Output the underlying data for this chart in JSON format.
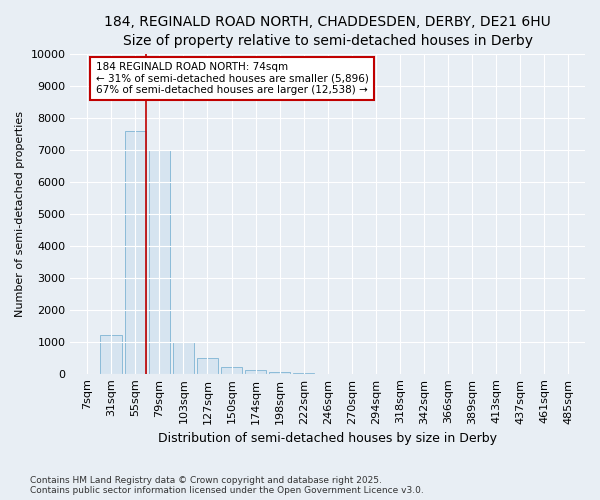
{
  "title1": "184, REGINALD ROAD NORTH, CHADDESDEN, DERBY, DE21 6HU",
  "title2": "Size of property relative to semi-detached houses in Derby",
  "xlabel": "Distribution of semi-detached houses by size in Derby",
  "ylabel": "Number of semi-detached properties",
  "categories": [
    "7sqm",
    "31sqm",
    "55sqm",
    "79sqm",
    "103sqm",
    "127sqm",
    "150sqm",
    "174sqm",
    "198sqm",
    "222sqm",
    "246sqm",
    "270sqm",
    "294sqm",
    "318sqm",
    "342sqm",
    "366sqm",
    "389sqm",
    "413sqm",
    "437sqm",
    "461sqm",
    "485sqm"
  ],
  "values": [
    5,
    1200,
    7600,
    7000,
    1000,
    500,
    200,
    100,
    50,
    10,
    3,
    2,
    1,
    1,
    0,
    0,
    0,
    0,
    0,
    0,
    0
  ],
  "bar_color": "#d6e4f0",
  "bar_edge_color": "#7eb4d4",
  "vline_x_index": 2.45,
  "vline_color": "#c00000",
  "annotation_text": "184 REGINALD ROAD NORTH: 74sqm\n← 31% of semi-detached houses are smaller (5,896)\n67% of semi-detached houses are larger (12,538) →",
  "annotation_box_facecolor": "#ffffff",
  "annotation_box_edgecolor": "#c00000",
  "ylim": [
    0,
    10000
  ],
  "yticks": [
    0,
    1000,
    2000,
    3000,
    4000,
    5000,
    6000,
    7000,
    8000,
    9000,
    10000
  ],
  "footnote1": "Contains HM Land Registry data © Crown copyright and database right 2025.",
  "footnote2": "Contains public sector information licensed under the Open Government Licence v3.0.",
  "bg_color": "#e8eef4",
  "plot_bg_color": "#e8eef4",
  "grid_color": "#ffffff",
  "title_fontsize": 10,
  "xlabel_fontsize": 9,
  "ylabel_fontsize": 8,
  "tick_fontsize": 8,
  "annot_fontsize": 7.5,
  "footnote_fontsize": 6.5
}
